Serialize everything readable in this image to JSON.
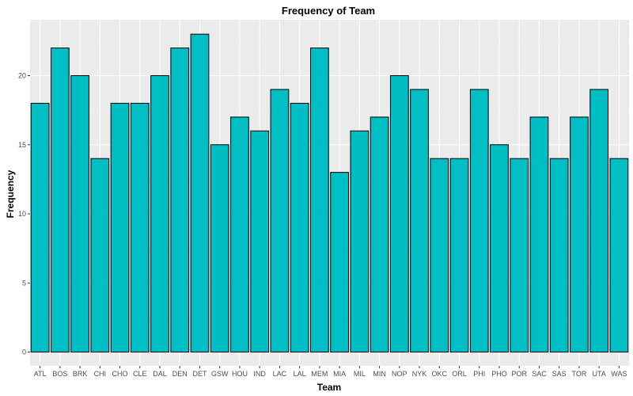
{
  "chart_data": {
    "type": "bar",
    "title": "Frequency of Team",
    "xlabel": "Team",
    "ylabel": "Frequency",
    "categories": [
      "ATL",
      "BOS",
      "BRK",
      "CHI",
      "CHO",
      "CLE",
      "DAL",
      "DEN",
      "DET",
      "GSW",
      "HOU",
      "IND",
      "LAC",
      "LAL",
      "MEM",
      "MIA",
      "MIL",
      "MIN",
      "NOP",
      "NYK",
      "OKC",
      "ORL",
      "PHI",
      "PHO",
      "POR",
      "SAC",
      "SAS",
      "TOR",
      "UTA",
      "WAS"
    ],
    "values": [
      18,
      22,
      20,
      14,
      18,
      18,
      20,
      22,
      23,
      15,
      17,
      16,
      19,
      18,
      22,
      13,
      16,
      17,
      20,
      19,
      14,
      14,
      19,
      15,
      14,
      17,
      14,
      17,
      19,
      14
    ],
    "ylim": [
      0,
      24
    ],
    "yticks": [
      0,
      5,
      10,
      15,
      20
    ],
    "grid": true,
    "colors": {
      "bar_fill": "#00bfc4",
      "bar_stroke": "#000000",
      "panel_bg": "#ebebeb",
      "grid_major": "#ffffff"
    }
  }
}
